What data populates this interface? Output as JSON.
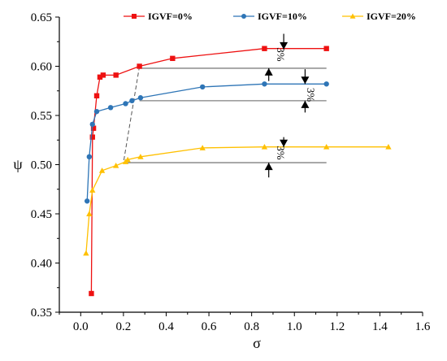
{
  "chart_data": {
    "type": "line",
    "xlabel": "σ",
    "ylabel": "ψ",
    "xlim": [
      -0.1,
      1.6
    ],
    "ylim": [
      0.35,
      0.65
    ],
    "xticks": [
      0.0,
      0.2,
      0.4,
      0.6,
      0.8,
      1.0,
      1.2,
      1.4,
      1.6
    ],
    "yticks": [
      0.35,
      0.4,
      0.45,
      0.5,
      0.55,
      0.6,
      0.65
    ],
    "xtick_labels": [
      "0.0",
      "0.2",
      "0.4",
      "0.6",
      "0.8",
      "1.0",
      "1.2",
      "1.4",
      "1.6"
    ],
    "ytick_labels": [
      "0.35",
      "0.40",
      "0.45",
      "0.50",
      "0.55",
      "0.60",
      "0.65"
    ],
    "grid": false,
    "legend_position": "top",
    "series": [
      {
        "name": "IGVF=0%",
        "color": "#ee1111",
        "marker": "square",
        "x": [
          0.05,
          0.055,
          0.06,
          0.075,
          0.09,
          0.105,
          0.165,
          0.275,
          0.43,
          0.86,
          1.15
        ],
        "y": [
          0.369,
          0.528,
          0.537,
          0.57,
          0.589,
          0.591,
          0.591,
          0.6,
          0.608,
          0.618,
          0.618
        ]
      },
      {
        "name": "IGVF=10%",
        "color": "#2e75b6",
        "marker": "circle",
        "x": [
          0.03,
          0.04,
          0.055,
          0.075,
          0.14,
          0.21,
          0.24,
          0.28,
          0.57,
          0.86,
          1.15
        ],
        "y": [
          0.463,
          0.508,
          0.541,
          0.554,
          0.558,
          0.562,
          0.565,
          0.568,
          0.579,
          0.582,
          0.582
        ]
      },
      {
        "name": "IGVF=20%",
        "color": "#ffc000",
        "marker": "triangle",
        "x": [
          0.025,
          0.04,
          0.055,
          0.1,
          0.165,
          0.21,
          0.22,
          0.28,
          0.57,
          0.86,
          1.15,
          1.44
        ],
        "y": [
          0.41,
          0.45,
          0.474,
          0.494,
          0.499,
          0.503,
          0.505,
          0.508,
          0.517,
          0.518,
          0.518,
          0.518
        ]
      }
    ],
    "annotations": [
      {
        "text": "3%",
        "x": 0.92,
        "y": 0.612
      },
      {
        "text": "3%",
        "x": 1.06,
        "y": 0.571
      },
      {
        "text": "3%",
        "x": 0.92,
        "y": 0.512
      }
    ],
    "reference_lines": [
      {
        "x": [
          0.275,
          1.15
        ],
        "y": 0.598,
        "color": "#808080"
      },
      {
        "x": [
          0.275,
          1.15
        ],
        "y": 0.565,
        "color": "#808080"
      },
      {
        "x": [
          0.22,
          1.15
        ],
        "y": 0.502,
        "color": "#808080"
      }
    ],
    "dashed_line": {
      "x": [
        0.275,
        0.2
      ],
      "y": [
        0.6,
        0.502
      ],
      "color": "#555555"
    }
  }
}
